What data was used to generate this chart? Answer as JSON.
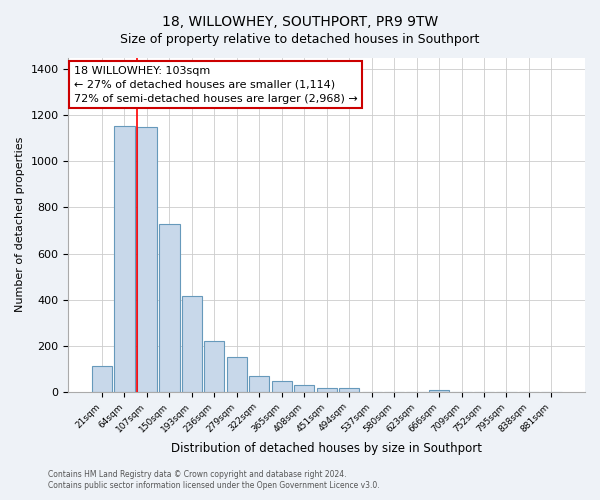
{
  "title": "18, WILLOWHEY, SOUTHPORT, PR9 9TW",
  "subtitle": "Size of property relative to detached houses in Southport",
  "xlabel": "Distribution of detached houses by size in Southport",
  "ylabel": "Number of detached properties",
  "bar_labels": [
    "21sqm",
    "64sqm",
    "107sqm",
    "150sqm",
    "193sqm",
    "236sqm",
    "279sqm",
    "322sqm",
    "365sqm",
    "408sqm",
    "451sqm",
    "494sqm",
    "537sqm",
    "580sqm",
    "623sqm",
    "666sqm",
    "709sqm",
    "752sqm",
    "795sqm",
    "838sqm",
    "881sqm"
  ],
  "bar_values": [
    110,
    1155,
    1148,
    730,
    415,
    220,
    150,
    68,
    48,
    30,
    18,
    15,
    0,
    0,
    0,
    8,
    0,
    0,
    0,
    0,
    0
  ],
  "bar_color": "#c8d8ea",
  "bar_edge_color": "#6699bb",
  "red_line_bin": 2,
  "annotation_line1": "18 WILLOWHEY: 103sqm",
  "annotation_line2": "← 27% of detached houses are smaller (1,114)",
  "annotation_line3": "72% of semi-detached houses are larger (2,968) →",
  "annotation_box_edge": "#cc0000",
  "ylim": [
    0,
    1450
  ],
  "yticks": [
    0,
    200,
    400,
    600,
    800,
    1000,
    1200,
    1400
  ],
  "footer_line1": "Contains HM Land Registry data © Crown copyright and database right 2024.",
  "footer_line2": "Contains public sector information licensed under the Open Government Licence v3.0.",
  "bg_color": "#eef2f7",
  "plot_bg_color": "#ffffff",
  "title_fontsize": 10,
  "subtitle_fontsize": 9
}
